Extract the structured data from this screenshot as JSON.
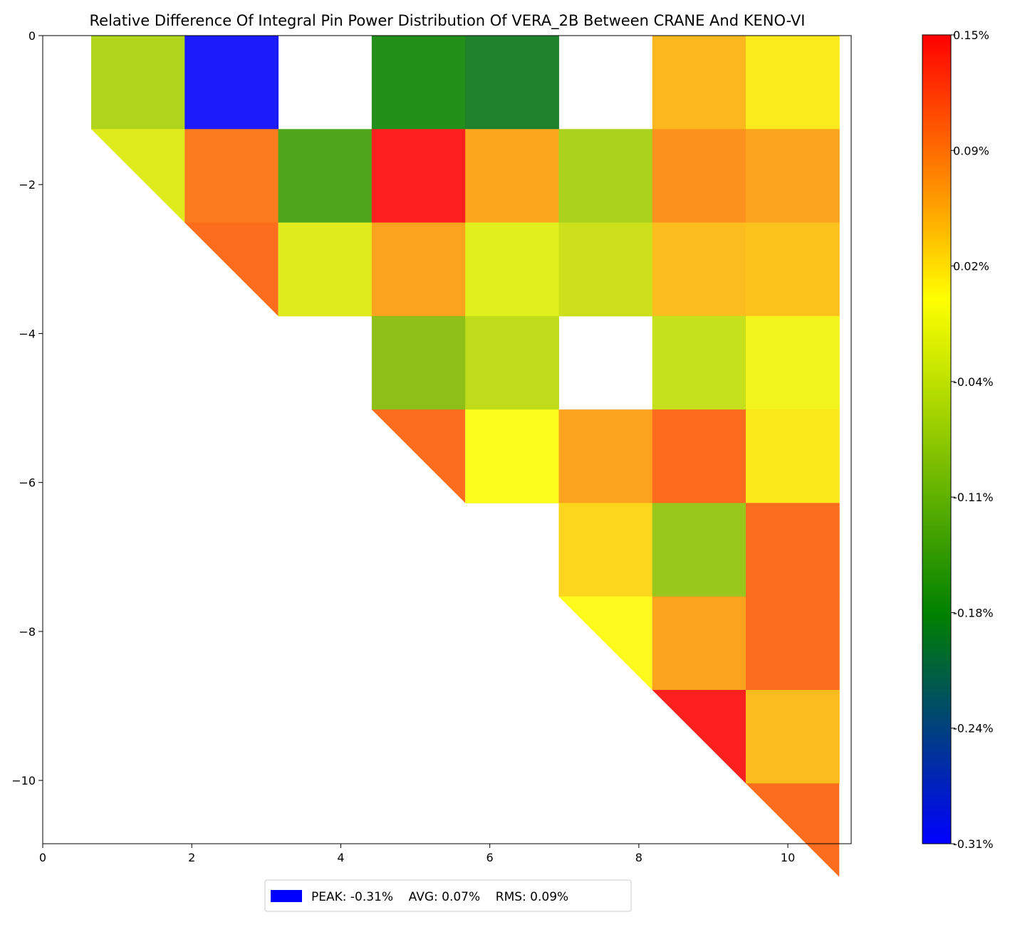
{
  "chart_data": {
    "type": "heatmap",
    "title": "Relative Difference Of Integral Pin Power Distribution Of VERA_2B Between CRANE And KENO-VI",
    "xlabel": "",
    "ylabel": "",
    "xlim": [
      0,
      10.85
    ],
    "ylim": [
      -10.85,
      0
    ],
    "x_ticks": [
      "0",
      "2",
      "4",
      "6",
      "8",
      "10"
    ],
    "y_ticks": [
      "0",
      "−2",
      "−4",
      "−6",
      "−8",
      "−10"
    ],
    "grid": false,
    "cell_size": 1.255,
    "value_unit": "%",
    "cells": [
      {
        "row": 0,
        "col": 0,
        "value": -0.06,
        "color": "#afd61c",
        "shape": "square"
      },
      {
        "row": 0,
        "col": 1,
        "value": -0.31,
        "color": "#1b1bfb",
        "shape": "square"
      },
      {
        "row": 0,
        "col": 3,
        "value": -0.16,
        "color": "#238f1b",
        "shape": "square"
      },
      {
        "row": 0,
        "col": 4,
        "value": -0.18,
        "color": "#1d822b",
        "shape": "square"
      },
      {
        "row": 0,
        "col": 6,
        "value": 0.04,
        "color": "#fbb71d",
        "shape": "square"
      },
      {
        "row": 0,
        "col": 7,
        "value": 0.0,
        "color": "#fbeb1d",
        "shape": "square"
      },
      {
        "row": 1,
        "col": 0,
        "value": -0.03,
        "color": "#dfeb1d",
        "shape": "triangle"
      },
      {
        "row": 1,
        "col": 1,
        "value": 0.09,
        "color": "#fc7b1d",
        "shape": "square"
      },
      {
        "row": 1,
        "col": 2,
        "value": -0.14,
        "color": "#4ea61c",
        "shape": "square"
      },
      {
        "row": 1,
        "col": 3,
        "value": 0.14,
        "color": "#fc211e",
        "shape": "square"
      },
      {
        "row": 1,
        "col": 4,
        "value": 0.06,
        "color": "#fba61d",
        "shape": "square"
      },
      {
        "row": 1,
        "col": 5,
        "value": -0.07,
        "color": "#aad21c",
        "shape": "square"
      },
      {
        "row": 1,
        "col": 6,
        "value": 0.08,
        "color": "#fc921d",
        "shape": "square"
      },
      {
        "row": 1,
        "col": 7,
        "value": 0.06,
        "color": "#fca21d",
        "shape": "square"
      },
      {
        "row": 2,
        "col": 1,
        "value": 0.1,
        "color": "#fc6e1d",
        "shape": "triangle"
      },
      {
        "row": 2,
        "col": 2,
        "value": -0.03,
        "color": "#dfeb1d",
        "shape": "square"
      },
      {
        "row": 2,
        "col": 3,
        "value": 0.06,
        "color": "#fca21d",
        "shape": "square"
      },
      {
        "row": 2,
        "col": 4,
        "value": -0.03,
        "color": "#dff01d",
        "shape": "square"
      },
      {
        "row": 2,
        "col": 5,
        "value": -0.05,
        "color": "#cde01c",
        "shape": "square"
      },
      {
        "row": 2,
        "col": 6,
        "value": 0.04,
        "color": "#fbbd1d",
        "shape": "square"
      },
      {
        "row": 2,
        "col": 7,
        "value": 0.04,
        "color": "#fbc21d",
        "shape": "square"
      },
      {
        "row": 3,
        "col": 3,
        "value": -0.09,
        "color": "#8ebf1b",
        "shape": "square"
      },
      {
        "row": 3,
        "col": 4,
        "value": -0.06,
        "color": "#c0da1c",
        "shape": "square"
      },
      {
        "row": 3,
        "col": 6,
        "value": -0.04,
        "color": "#c5e01d",
        "shape": "square"
      },
      {
        "row": 3,
        "col": 7,
        "value": -0.01,
        "color": "#f4f41d",
        "shape": "square"
      },
      {
        "row": 4,
        "col": 3,
        "value": 0.1,
        "color": "#fc6e1d",
        "shape": "triangle"
      },
      {
        "row": 4,
        "col": 4,
        "value": 0.0,
        "color": "#fcfc1d",
        "shape": "square"
      },
      {
        "row": 4,
        "col": 5,
        "value": 0.06,
        "color": "#fca21d",
        "shape": "square"
      },
      {
        "row": 4,
        "col": 6,
        "value": 0.1,
        "color": "#fc6b1d",
        "shape": "square"
      },
      {
        "row": 4,
        "col": 7,
        "value": 0.0,
        "color": "#fbe81d",
        "shape": "square"
      },
      {
        "row": 5,
        "col": 5,
        "value": 0.03,
        "color": "#fcd61d",
        "shape": "square"
      },
      {
        "row": 5,
        "col": 6,
        "value": -0.09,
        "color": "#99c71c",
        "shape": "square"
      },
      {
        "row": 5,
        "col": 7,
        "value": 0.1,
        "color": "#fc6e1d",
        "shape": "square"
      },
      {
        "row": 6,
        "col": 5,
        "value": 0.0,
        "color": "#fcfa1d",
        "shape": "triangle"
      },
      {
        "row": 6,
        "col": 6,
        "value": 0.06,
        "color": "#fca21d",
        "shape": "square"
      },
      {
        "row": 6,
        "col": 7,
        "value": 0.1,
        "color": "#fc6e1d",
        "shape": "square"
      },
      {
        "row": 7,
        "col": 6,
        "value": 0.14,
        "color": "#fc211e",
        "shape": "triangle"
      },
      {
        "row": 7,
        "col": 7,
        "value": 0.04,
        "color": "#fbbd1d",
        "shape": "square"
      },
      {
        "row": 8,
        "col": 7,
        "value": 0.1,
        "color": "#fc6e1d",
        "shape": "triangle"
      }
    ],
    "colorbar": {
      "range": [
        -0.31,
        0.15
      ],
      "tick_labels": [
        "0.15%",
        "0.09%",
        "0.02%",
        "-0.04%",
        "-0.11%",
        "-0.18%",
        "-0.24%",
        "-0.31%"
      ],
      "stops": [
        {
          "value": -0.31,
          "color": "#0000ff"
        },
        {
          "value": -0.18,
          "color": "#008000"
        },
        {
          "value": -0.04,
          "color": "#c8e600"
        },
        {
          "value": 0.0,
          "color": "#ffff00"
        },
        {
          "value": 0.05,
          "color": "#ffa500"
        },
        {
          "value": 0.15,
          "color": "#ff0000"
        }
      ]
    },
    "legend": {
      "placement": "bottom-center",
      "swatch_color": "#0000ff",
      "text": "PEAK: -0.31%    AVG: 0.07%    RMS: 0.09%"
    }
  }
}
